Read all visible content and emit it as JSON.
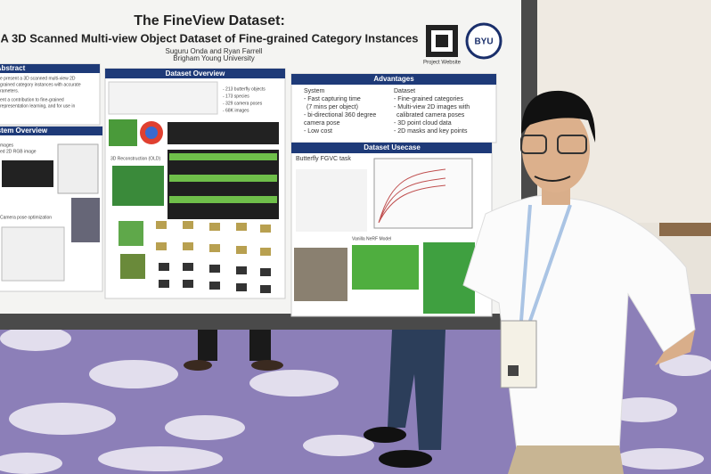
{
  "poster": {
    "title": "The FineView Dataset:",
    "subtitle": "A 3D Scanned Multi-view Object Dataset of Fine-grained Category Instances",
    "authors": "Suguru Onda and Ryan Farrell",
    "affiliation": "Brigham Young University",
    "qr_caption": "Project Website",
    "logo": "BYU",
    "abstract": {
      "heading": "Abstract",
      "lines": [
        "e present a 3D scanned multi-view 2D",
        "grained category instances with accurate",
        "rameters.",
        "ent a contribution to fine-grained",
        "representation learning, and for use in"
      ]
    },
    "system_overview": {
      "heading": "System Overview",
      "lines": [
        "mages",
        "ed 2D RGB image",
        "Camera pose optimization"
      ]
    },
    "dataset_overview": {
      "heading": "Dataset Overview",
      "stats": [
        "- 213 butterfly objects",
        "- 173 species",
        "- 329 camera poses",
        "- 68K images"
      ],
      "reconstruction": "3D Reconstruction (OLD)"
    },
    "advantages": {
      "heading": "Advantages",
      "system": {
        "heading": "System",
        "lines": [
          "- Fast capturing time",
          "(7 mins per object)",
          "- bi-directional 360 degree",
          "camera pose",
          "- Low cost"
        ]
      },
      "dataset": {
        "heading": "Dataset",
        "lines": [
          "- Fine-grained categories",
          "- Multi-view 2D images with",
          "calibrated camera poses",
          "- 3D point cloud data",
          "- 2D masks and key points"
        ]
      }
    },
    "usecase": {
      "heading": "Dataset Usecase",
      "task": "Butterfly FGVC task",
      "nerf": "Vanilla NeRF Model"
    }
  }
}
